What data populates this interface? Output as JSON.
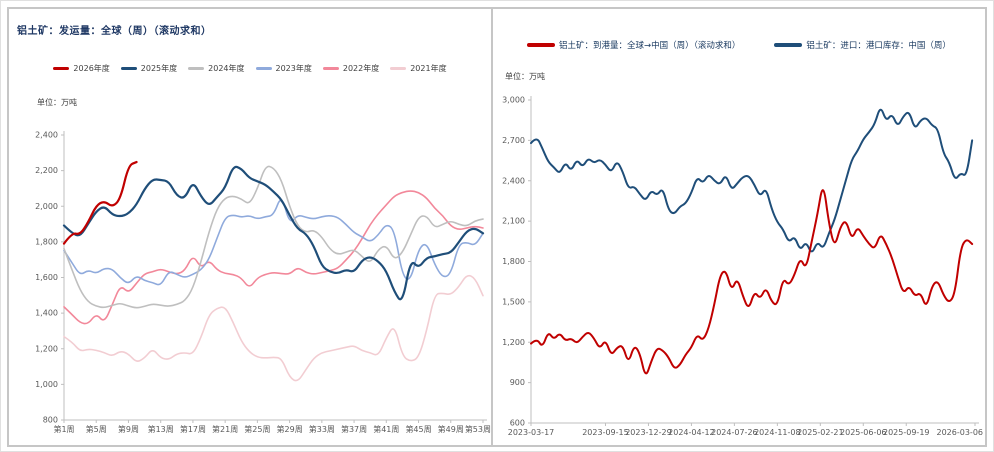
{
  "accent_colors": {
    "title_navy": "#1f3864",
    "axis_gray": "#bfbfbf",
    "tick_text": "#595959"
  },
  "chart_data": [
    {
      "type": "line",
      "title": "铝土矿：发运量：全球（周）（滚动求和）",
      "unit_label": "单位：万吨",
      "ylabel": "万吨",
      "ylim": [
        800,
        2400
      ],
      "y_step": 200,
      "xlim": [
        1,
        53
      ],
      "grid": false,
      "legend_position": "top",
      "x_tick_labels": [
        "第1周",
        "第5周",
        "第9周",
        "第13周",
        "第17周",
        "第21周",
        "第25周",
        "第29周",
        "第33周",
        "第37周",
        "第41周",
        "第45周",
        "第49周",
        "第53周"
      ],
      "x_tick_positions": [
        1,
        5,
        9,
        13,
        17,
        21,
        25,
        29,
        33,
        37,
        41,
        45,
        49,
        53
      ],
      "series": [
        {
          "name": "2026年度",
          "color": "#c00000",
          "width": 2.2,
          "x_start": 1,
          "x_step": 1,
          "values": [
            1790,
            1852,
            1840,
            1910,
            2005,
            2030,
            1995,
            2040,
            2230,
            2248
          ]
        },
        {
          "name": "2025年度",
          "color": "#1f4e79",
          "width": 2.2,
          "x_start": 1,
          "x_step": 1,
          "values": [
            1892,
            1848,
            1830,
            1902,
            1972,
            2002,
            1952,
            1942,
            1958,
            2008,
            2098,
            2152,
            2148,
            2140,
            2058,
            2042,
            2142,
            2055,
            2000,
            2052,
            2102,
            2228,
            2212,
            2158,
            2140,
            2122,
            2082,
            2038,
            1948,
            1872,
            1848,
            1778,
            1662,
            1632,
            1622,
            1645,
            1628,
            1698,
            1718,
            1692,
            1638,
            1518,
            1452,
            1702,
            1652,
            1712,
            1718,
            1732,
            1738,
            1798,
            1862,
            1878,
            1848
          ]
        },
        {
          "name": "2024年度",
          "color": "#bfbfbf",
          "width": 1.6,
          "x_start": 1,
          "x_step": 1,
          "values": [
            1762,
            1642,
            1528,
            1462,
            1438,
            1430,
            1444,
            1456,
            1440,
            1428,
            1438,
            1452,
            1444,
            1438,
            1448,
            1468,
            1538,
            1688,
            1858,
            1988,
            2048,
            2058,
            2042,
            2008,
            2098,
            2228,
            2218,
            2148,
            1998,
            1888,
            1852,
            1868,
            1828,
            1758,
            1728,
            1742,
            1758,
            1718,
            1678,
            1758,
            1782,
            1698,
            1738,
            1838,
            1942,
            1948,
            1878,
            1898,
            1918,
            1898,
            1888,
            1918,
            1928
          ]
        },
        {
          "name": "2023年度",
          "color": "#8faadc",
          "width": 1.6,
          "x_start": 1,
          "x_step": 1,
          "values": [
            1752,
            1682,
            1612,
            1642,
            1622,
            1652,
            1648,
            1598,
            1562,
            1612,
            1582,
            1572,
            1552,
            1638,
            1618,
            1598,
            1618,
            1642,
            1702,
            1822,
            1938,
            1952,
            1938,
            1948,
            1928,
            1942,
            1948,
            2068,
            1898,
            1952,
            1938,
            1928,
            1942,
            1948,
            1938,
            1898,
            1852,
            1828,
            1798,
            1838,
            1902,
            1868,
            1608,
            1578,
            1762,
            1798,
            1672,
            1598,
            1618,
            1788,
            1798,
            1778,
            1848
          ]
        },
        {
          "name": "2022年度",
          "color": "#f2889a",
          "width": 1.6,
          "x_start": 1,
          "x_step": 1,
          "values": [
            1435,
            1392,
            1345,
            1338,
            1398,
            1345,
            1448,
            1558,
            1512,
            1568,
            1622,
            1632,
            1648,
            1632,
            1618,
            1638,
            1728,
            1652,
            1698,
            1642,
            1622,
            1618,
            1598,
            1538,
            1598,
            1618,
            1628,
            1622,
            1618,
            1658,
            1628,
            1618,
            1628,
            1638,
            1652,
            1698,
            1748,
            1818,
            1898,
            1958,
            2008,
            2058,
            2078,
            2088,
            2078,
            2048,
            1988,
            1948,
            1888,
            1868,
            1878,
            1888,
            1878
          ]
        },
        {
          "name": "2021年度",
          "color": "#f2cdd2",
          "width": 1.6,
          "x_start": 1,
          "x_step": 1,
          "values": [
            1268,
            1238,
            1185,
            1198,
            1192,
            1178,
            1158,
            1188,
            1172,
            1122,
            1148,
            1202,
            1148,
            1138,
            1172,
            1178,
            1168,
            1262,
            1392,
            1428,
            1438,
            1348,
            1242,
            1182,
            1152,
            1148,
            1152,
            1148,
            1038,
            1012,
            1082,
            1148,
            1178,
            1188,
            1198,
            1208,
            1218,
            1188,
            1178,
            1158,
            1262,
            1338,
            1158,
            1128,
            1148,
            1298,
            1508,
            1512,
            1502,
            1548,
            1618,
            1598,
            1498
          ]
        }
      ]
    },
    {
      "type": "line",
      "title": "",
      "unit_label": "单位：万吨",
      "ylabel": "万吨",
      "ylim": [
        600,
        3000
      ],
      "y_step": 300,
      "xlim": [
        0,
        155
      ],
      "grid": false,
      "legend_position": "top",
      "x_tick_labels": [
        "2023-03-17",
        "2023-09-15",
        "2023-12-29",
        "2024-04-12",
        "2024-07-26",
        "2024-11-08",
        "2025-02-21",
        "2025-06-06",
        "2025-09-19",
        "2026-03-06"
      ],
      "x_tick_positions": [
        0,
        26,
        41,
        56,
        71,
        86,
        101,
        116,
        131,
        155
      ],
      "series": [
        {
          "name": "铝土矿：到港量：全球→中国（周）（滚动求和）",
          "color": "#c00000",
          "width": 2,
          "x_start": 0,
          "x_step": 2,
          "values": [
            1190,
            1230,
            1160,
            1280,
            1220,
            1270,
            1210,
            1230,
            1190,
            1240,
            1280,
            1230,
            1150,
            1220,
            1100,
            1160,
            1180,
            1040,
            1180,
            1120,
            930,
            1060,
            1160,
            1140,
            1090,
            1000,
            1030,
            1110,
            1160,
            1260,
            1210,
            1300,
            1480,
            1700,
            1740,
            1580,
            1680,
            1540,
            1440,
            1580,
            1520,
            1610,
            1500,
            1470,
            1680,
            1620,
            1700,
            1830,
            1740,
            1950,
            2150,
            2400,
            2080,
            1900,
            2060,
            2110,
            1960,
            2060,
            1990,
            1930,
            1890,
            2010,
            1930,
            1830,
            1690,
            1560,
            1620,
            1540,
            1570,
            1450,
            1620,
            1660,
            1550,
            1490,
            1560,
            1900,
            1970,
            1930
          ]
        },
        {
          "name": "铝土矿：进口：港口库存：中国（周）",
          "color": "#1f4e79",
          "width": 2,
          "x_start": 0,
          "x_step": 2,
          "values": [
            2680,
            2730,
            2640,
            2540,
            2500,
            2450,
            2540,
            2470,
            2560,
            2500,
            2570,
            2530,
            2560,
            2520,
            2460,
            2550,
            2470,
            2340,
            2360,
            2300,
            2250,
            2330,
            2290,
            2350,
            2180,
            2150,
            2210,
            2230,
            2310,
            2430,
            2380,
            2450,
            2400,
            2370,
            2450,
            2330,
            2380,
            2430,
            2440,
            2370,
            2280,
            2350,
            2190,
            2090,
            2040,
            1940,
            1990,
            1880,
            1950,
            1850,
            1950,
            1890,
            2010,
            2110,
            2260,
            2410,
            2560,
            2620,
            2710,
            2760,
            2820,
            2960,
            2840,
            2900,
            2800,
            2880,
            2920,
            2780,
            2850,
            2870,
            2810,
            2790,
            2600,
            2540,
            2400,
            2460,
            2430,
            2700
          ]
        }
      ]
    }
  ]
}
